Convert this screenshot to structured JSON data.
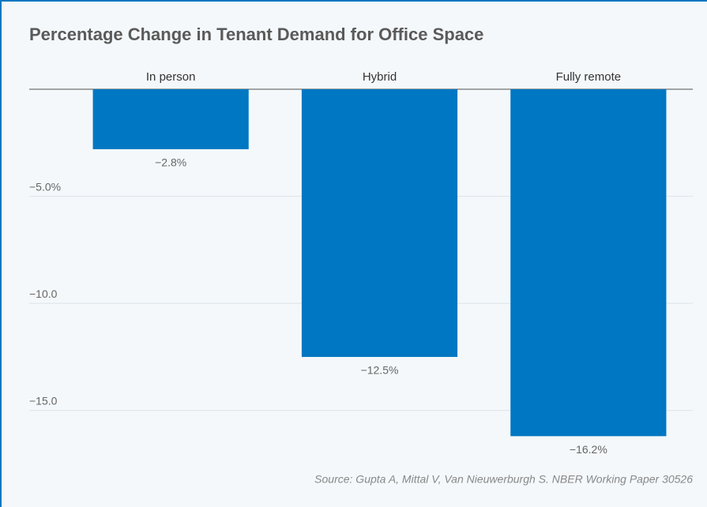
{
  "chart_data": {
    "type": "bar",
    "title": "Percentage Change in Tenant Demand for Office Space",
    "categories": [
      "In person",
      "Hybrid",
      "Fully remote"
    ],
    "values": [
      -2.8,
      -12.5,
      -16.2
    ],
    "value_labels": [
      "−2.8%",
      "−12.5%",
      "−16.2%"
    ],
    "color": "#0077c2",
    "ylim": [
      -17,
      0
    ],
    "yticks": [
      {
        "value": -5,
        "label": "−5.0%"
      },
      {
        "value": -10,
        "label": "−10.0"
      },
      {
        "value": -15,
        "label": "−15.0"
      }
    ],
    "grid": true,
    "source": "Source: Gupta A, Mittal V, Van Nieuwerburgh S. NBER Working Paper 30526"
  }
}
